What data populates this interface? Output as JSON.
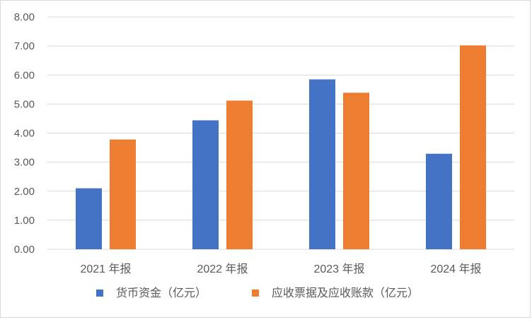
{
  "chart_data": {
    "type": "bar",
    "categories": [
      "2021 年报",
      "2022 年报",
      "2023 年报",
      "2024 年报"
    ],
    "series": [
      {
        "name": "货币资金（亿元）",
        "color": "#4472c4",
        "values": [
          2.1,
          4.44,
          5.85,
          3.29
        ]
      },
      {
        "name": "应收票据及应收账款（亿元）",
        "color": "#ed7d31",
        "values": [
          3.78,
          5.12,
          5.39,
          7.02
        ]
      }
    ],
    "y_ticks": [
      "0.00",
      "1.00",
      "2.00",
      "3.00",
      "4.00",
      "5.00",
      "6.00",
      "7.00",
      "8.00"
    ],
    "ylim": [
      0,
      8
    ],
    "grid": true,
    "legend_position": "bottom"
  }
}
